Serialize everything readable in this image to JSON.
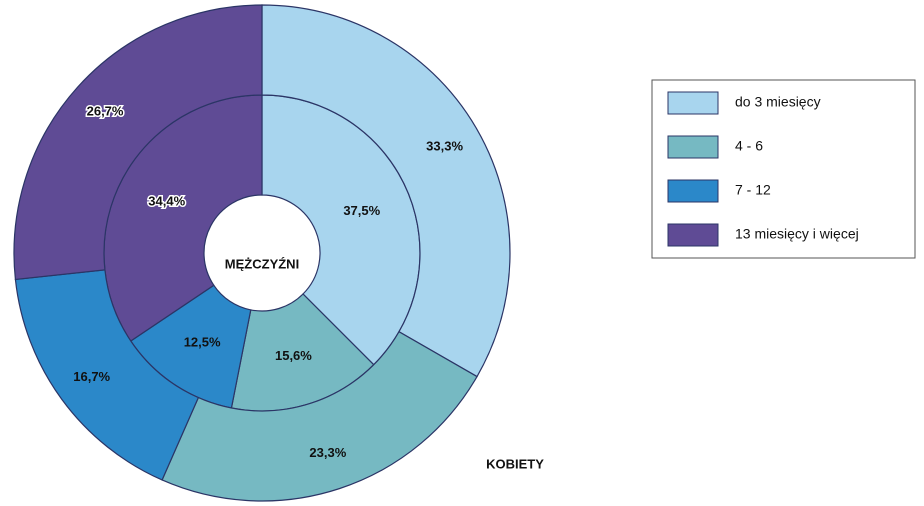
{
  "chart_data": {
    "type": "pie",
    "categories": [
      "do 3 miesięcy",
      "4 - 6",
      "7 - 12",
      "13 miesięcy i więcej"
    ],
    "colors": [
      "#a8d5ee",
      "#76b9c2",
      "#2b88c9",
      "#5f4b95"
    ],
    "series": [
      {
        "name": "MĘŻCZYŹNI",
        "values": [
          37.5,
          15.6,
          12.5,
          34.4
        ],
        "value_labels": [
          "37,5%",
          "15,6%",
          "12,5%",
          "34,4%"
        ]
      },
      {
        "name": "KOBIETY",
        "values": [
          33.3,
          23.3,
          16.7,
          26.7
        ],
        "value_labels": [
          "33,3%",
          "23,3%",
          "16,7%",
          "26,7%"
        ]
      }
    ],
    "legend": "right"
  }
}
